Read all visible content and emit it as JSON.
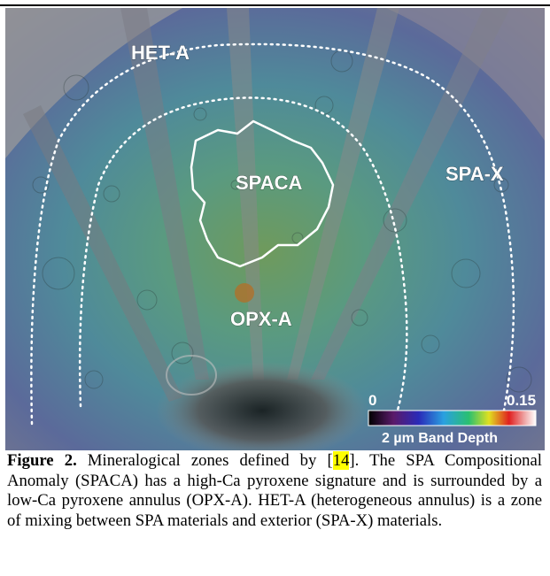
{
  "figure": {
    "zones": {
      "het_a": "HET-A",
      "spaca": "SPACA",
      "spa_x": "SPA-X",
      "opx_a": "OPX-A"
    },
    "colorbar": {
      "min": "0",
      "max": "0.15",
      "title": "2 µm Band Depth"
    }
  },
  "caption": {
    "label": "Figure 2.",
    "pre_ref": " Mineralogical zones defined by [",
    "ref": "14",
    "post_ref": "]. The SPA Compositional Anomaly (SPACA) has a high-Ca pyroxene signature and is surrounded by a low-Ca pyroxene annulus (OPX-A). HET-A (heterogeneous annulus) is a zone of mixing between SPA materials and exterior (SPA-X) materials."
  }
}
